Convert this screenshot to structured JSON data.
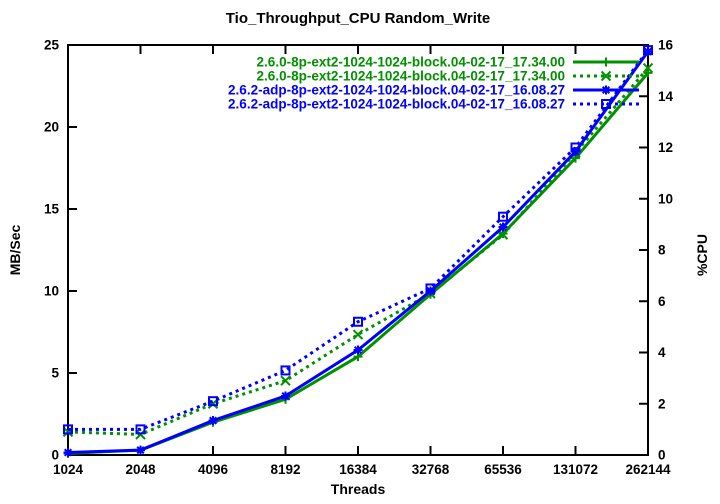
{
  "chart_data": {
    "type": "line",
    "title": "Tio_Throughput_CPU Random_Write",
    "xlabel": "Threads",
    "ylabel_left": "MB/Sec",
    "ylabel_right": "%CPU",
    "x_scale": "log2",
    "x_categories": [
      "1024",
      "2048",
      "4096",
      "8192",
      "16384",
      "32768",
      "65536",
      "131072",
      "262144"
    ],
    "ylim_left": [
      0,
      25
    ],
    "yticks_left": [
      0,
      5,
      10,
      15,
      20,
      25
    ],
    "ylim_right": [
      0,
      16
    ],
    "yticks_right": [
      0,
      2,
      4,
      6,
      8,
      10,
      12,
      14,
      16
    ],
    "grid": false,
    "legend_position": "top-center-inside",
    "series": [
      {
        "name": "2.6.0-8p-ext2-1024-1024-block.04-02-17_17.34.00",
        "color": "#009000",
        "line": "solid",
        "marker": "plus",
        "axis": "left",
        "unit": "MB/Sec",
        "values": [
          0.1,
          0.3,
          2.0,
          3.4,
          6.0,
          9.8,
          13.5,
          18.1,
          23.3
        ]
      },
      {
        "name": "2.6.0-8p-ext2-1024-1024-block.04-02-17_17.34.00",
        "color": "#009000",
        "line": "dotted",
        "marker": "cross",
        "axis": "right",
        "unit": "%CPU",
        "values": [
          0.9,
          0.8,
          2.0,
          2.9,
          4.7,
          6.3,
          8.6,
          11.8,
          15.1
        ]
      },
      {
        "name": "2.6.2-adp-8p-ext2-1024-1024-block.04-02-17_16.08.27",
        "color": "#0000ff",
        "line": "solid",
        "marker": "asterisk",
        "axis": "left",
        "unit": "MB/Sec",
        "values": [
          0.15,
          0.3,
          2.1,
          3.6,
          6.4,
          10.0,
          13.9,
          18.5,
          24.6
        ]
      },
      {
        "name": "2.6.2-adp-8p-ext2-1024-1024-block.04-02-17_16.08.27",
        "color": "#0000ff",
        "line": "dotted",
        "marker": "square",
        "axis": "right",
        "unit": "%CPU",
        "values": [
          1.0,
          1.0,
          2.1,
          3.3,
          5.2,
          6.5,
          9.3,
          12.0,
          15.8
        ]
      }
    ],
    "axis_color": "#000000",
    "background_color": "#ffffff"
  }
}
